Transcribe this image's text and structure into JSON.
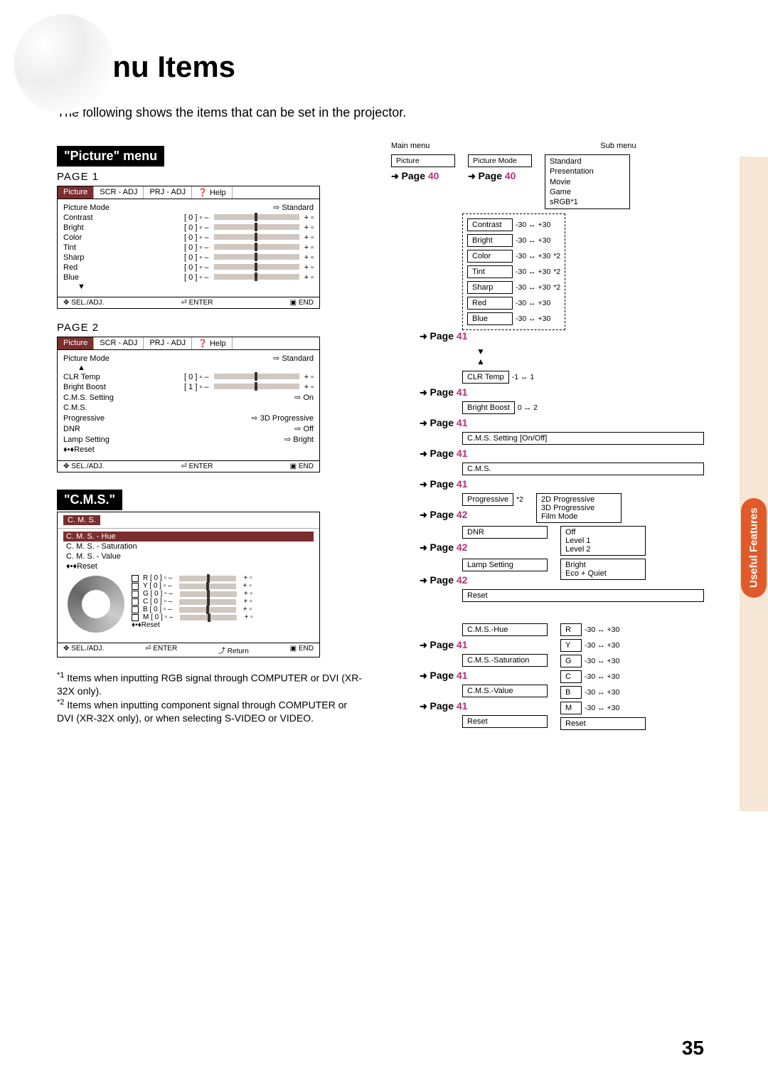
{
  "header": {
    "title": "Menu Items",
    "intro": "The following shows the items that can be set in the projector."
  },
  "side_tab": {
    "label": "Useful\nFeatures"
  },
  "page_number": "35",
  "sections": {
    "picture": {
      "label": "\"Picture\" menu"
    },
    "cms": {
      "label": "\"C.M.S.\""
    }
  },
  "page_labels": {
    "p1": "PAGE 1",
    "p2": "PAGE 2"
  },
  "menu_tabs": {
    "picture": "Picture",
    "scr": "SCR - ADJ",
    "prj": "PRJ - ADJ",
    "help": "Help"
  },
  "menu1": {
    "mode_label": "Picture Mode",
    "mode_value": "Standard",
    "items": [
      {
        "name": "Contrast",
        "val": "0"
      },
      {
        "name": "Bright",
        "val": "0"
      },
      {
        "name": "Color",
        "val": "0"
      },
      {
        "name": "Tint",
        "val": "0"
      },
      {
        "name": "Sharp",
        "val": "0"
      },
      {
        "name": "Red",
        "val": "0"
      },
      {
        "name": "Blue",
        "val": "0"
      }
    ],
    "footer": {
      "sel": "SEL./ADJ.",
      "enter": "ENTER",
      "end": "END"
    }
  },
  "menu2": {
    "mode_label": "Picture Mode",
    "mode_value": "Standard",
    "items": [
      {
        "name": "CLR Temp",
        "val": "0"
      },
      {
        "name": "Bright Boost",
        "val": "1"
      }
    ],
    "rows": [
      {
        "name": "C.M.S. Setting",
        "val": "On"
      },
      {
        "name": "C.M.S.",
        "val": ""
      },
      {
        "name": "Progressive",
        "val": "3D Progressive"
      },
      {
        "name": "DNR",
        "val": "Off"
      },
      {
        "name": "Lamp Setting",
        "val": "Bright"
      },
      {
        "name": "Reset",
        "val": ""
      }
    ],
    "footer": {
      "sel": "SEL./ADJ.",
      "enter": "ENTER",
      "end": "END"
    }
  },
  "cms_menu": {
    "title": "C. M. S.",
    "rows": [
      "C. M. S. - Hue",
      "C. M. S. - Saturation",
      "C. M. S. - Value",
      "Reset"
    ],
    "colors": [
      {
        "l": "R",
        "v": "0"
      },
      {
        "l": "Y",
        "v": "0"
      },
      {
        "l": "G",
        "v": "0"
      },
      {
        "l": "C",
        "v": "0"
      },
      {
        "l": "B",
        "v": "0"
      },
      {
        "l": "M",
        "v": "0"
      }
    ],
    "reset": "Reset",
    "footer": {
      "sel": "SEL./ADJ.",
      "ret": "Return",
      "enter": "ENTER",
      "end": "END"
    }
  },
  "hierarchy": {
    "main_label": "Main menu",
    "sub_label": "Sub menu",
    "picture": "Picture",
    "picture_mode": "Picture Mode",
    "modes": [
      "Standard",
      "Presentation",
      "Movie",
      "Game",
      "sRGB*1"
    ],
    "ranges": [
      {
        "name": "Contrast",
        "r": "-30 ↔ +30",
        "note": ""
      },
      {
        "name": "Bright",
        "r": "-30 ↔ +30",
        "note": ""
      },
      {
        "name": "Color",
        "r": "-30 ↔ +30",
        "note": "*2"
      },
      {
        "name": "Tint",
        "r": "-30 ↔ +30",
        "note": "*2"
      },
      {
        "name": "Sharp",
        "r": "-30 ↔ +30",
        "note": "*2"
      },
      {
        "name": "Red",
        "r": "-30 ↔ +30",
        "note": ""
      },
      {
        "name": "Blue",
        "r": "-30 ↔ +30",
        "note": ""
      }
    ],
    "clr_temp": {
      "name": "CLR Temp",
      "r": "-1 ↔ 1"
    },
    "bright_boost": {
      "name": "Bright Boost",
      "r": "0 ↔ 2"
    },
    "cms_setting": {
      "name": "C.M.S. Setting [On/Off]"
    },
    "cms": {
      "name": "C.M.S."
    },
    "progressive": {
      "name": "Progressive",
      "note": "*2",
      "opts": [
        "2D Progressive",
        "3D Progressive",
        "Film Mode"
      ]
    },
    "dnr": {
      "name": "DNR",
      "opts": [
        "Off",
        "Level 1",
        "Level 2"
      ]
    },
    "lamp": {
      "name": "Lamp Setting",
      "opts": [
        "Bright",
        "Eco + Quiet"
      ]
    },
    "reset": "Reset",
    "cms_tree": {
      "rows": [
        "C.M.S.-Hue",
        "C.M.S.-Saturation",
        "C.M.S.-Value",
        "Reset"
      ],
      "colors": [
        {
          "l": "R",
          "r": "-30 ↔ +30"
        },
        {
          "l": "Y",
          "r": "-30 ↔ +30"
        },
        {
          "l": "G",
          "r": "-30 ↔ +30"
        },
        {
          "l": "C",
          "r": "-30 ↔ +30"
        },
        {
          "l": "B",
          "r": "-30 ↔ +30"
        },
        {
          "l": "M",
          "r": "-30 ↔ +30"
        }
      ],
      "reset": "Reset"
    }
  },
  "pagelinks": {
    "p40": "Page 40",
    "p41": "Page 41",
    "p42": "Page 42"
  },
  "footnotes": {
    "f1_pre": "*1",
    "f1": " Items when inputting RGB signal through COMPUTER or DVI (XR-32X only).",
    "f2_pre": "*2",
    "f2": " Items when inputting component signal through COMPUTER or DVI (XR-32X only), or when selecting S-VIDEO or VIDEO."
  }
}
